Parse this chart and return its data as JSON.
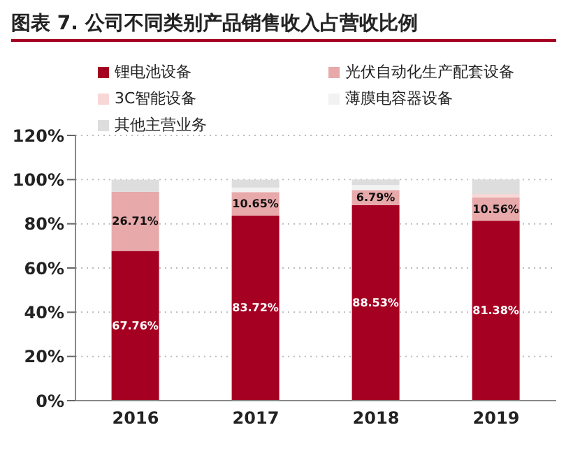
{
  "chart_data": {
    "type": "bar",
    "title": "图表 7. 公司不同类别产品销售收入占营收比例",
    "categories": [
      "2016",
      "2017",
      "2018",
      "2019"
    ],
    "stacked": true,
    "series": [
      {
        "name": "锂电池设备",
        "color": "#a50021",
        "values": [
          67.76,
          83.72,
          88.53,
          81.38
        ],
        "value_labels": [
          "67.76%",
          "83.72%",
          "88.53%",
          "81.38%"
        ]
      },
      {
        "name": "光伏自动化生产配套设备",
        "color": "#e8a9aa",
        "values": [
          26.71,
          10.65,
          6.79,
          10.56
        ],
        "value_labels": [
          "26.71%",
          "10.65%",
          "6.79%",
          "10.56%"
        ]
      },
      {
        "name": "3C智能设备",
        "color": "#f8d7d7",
        "values": [
          0,
          0,
          0,
          1.5
        ]
      },
      {
        "name": "薄膜电容器设备",
        "color": "#f2f2f2",
        "values": [
          0,
          2,
          2.2,
          0
        ]
      },
      {
        "name": "其他主营业务",
        "color": "#dddddd",
        "values": [
          5.5,
          3.6,
          2.5,
          6.6
        ]
      }
    ],
    "ylim": [
      0,
      120
    ],
    "yticks": [
      {
        "value": 0,
        "label": "0%"
      },
      {
        "value": 20,
        "label": "20%"
      },
      {
        "value": 40,
        "label": "40%"
      },
      {
        "value": 60,
        "label": "60%"
      },
      {
        "value": 80,
        "label": "80%"
      },
      {
        "value": 100,
        "label": "100%"
      },
      {
        "value": 120,
        "label": "120%"
      }
    ],
    "grid": "y",
    "legend": "top"
  }
}
